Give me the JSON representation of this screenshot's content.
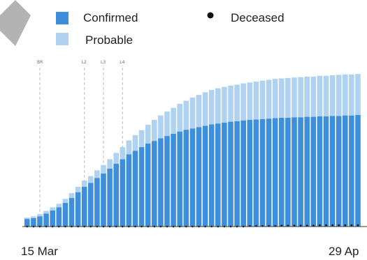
{
  "chart_data": {
    "type": "bar",
    "stacked": true,
    "title": "",
    "xlabel": "",
    "ylabel": "",
    "x_start_label": "15 Mar",
    "x_end_label": "29 Ap",
    "legend_placement": "top",
    "grid": false,
    "series": [
      {
        "name": "Confirmed",
        "color": "#3d8fdb",
        "values": [
          17,
          19,
          23,
          29,
          36,
          43,
          53,
          64,
          77,
          89,
          98,
          109,
          119,
          130,
          141,
          151,
          162,
          170,
          178,
          186,
          192,
          198,
          203,
          208,
          213,
          217,
          220,
          223,
          226,
          229,
          231,
          233,
          235,
          236,
          238,
          239,
          240,
          241,
          242,
          243,
          244,
          244,
          245,
          245,
          246,
          246,
          247,
          247,
          248,
          248,
          249,
          249,
          250
        ]
      },
      {
        "name": "Probable",
        "color": "#aed2f0",
        "values": [
          3,
          4,
          5,
          6,
          7,
          8,
          9,
          11,
          12,
          14,
          15,
          17,
          19,
          21,
          24,
          27,
          31,
          35,
          38,
          42,
          47,
          51,
          55,
          58,
          62,
          65,
          69,
          72,
          75,
          77,
          79,
          80,
          81,
          82,
          83,
          84,
          85,
          86,
          87,
          88,
          88,
          89,
          89,
          90,
          90,
          90,
          91,
          91,
          91,
          92,
          92,
          92,
          92
        ]
      },
      {
        "name": "Deceased",
        "color": "#111111",
        "marker": "dot",
        "values": [
          0,
          0,
          0,
          0,
          0,
          0,
          0,
          0,
          0,
          0,
          0,
          0,
          0,
          0,
          0,
          0,
          0,
          0,
          0,
          0,
          0,
          0,
          0,
          0,
          0,
          0,
          0,
          0,
          0,
          0,
          0,
          0,
          0,
          0,
          0,
          1,
          1,
          1,
          1,
          1,
          2,
          2,
          2,
          2,
          2,
          2,
          3,
          3,
          3,
          3,
          3,
          3,
          3
        ]
      }
    ],
    "markers": [
      {
        "label": "BR",
        "index": 2
      },
      {
        "label": "L2",
        "index": 9
      },
      {
        "label": "L3",
        "index": 12
      },
      {
        "label": "L4",
        "index": 15
      }
    ]
  }
}
